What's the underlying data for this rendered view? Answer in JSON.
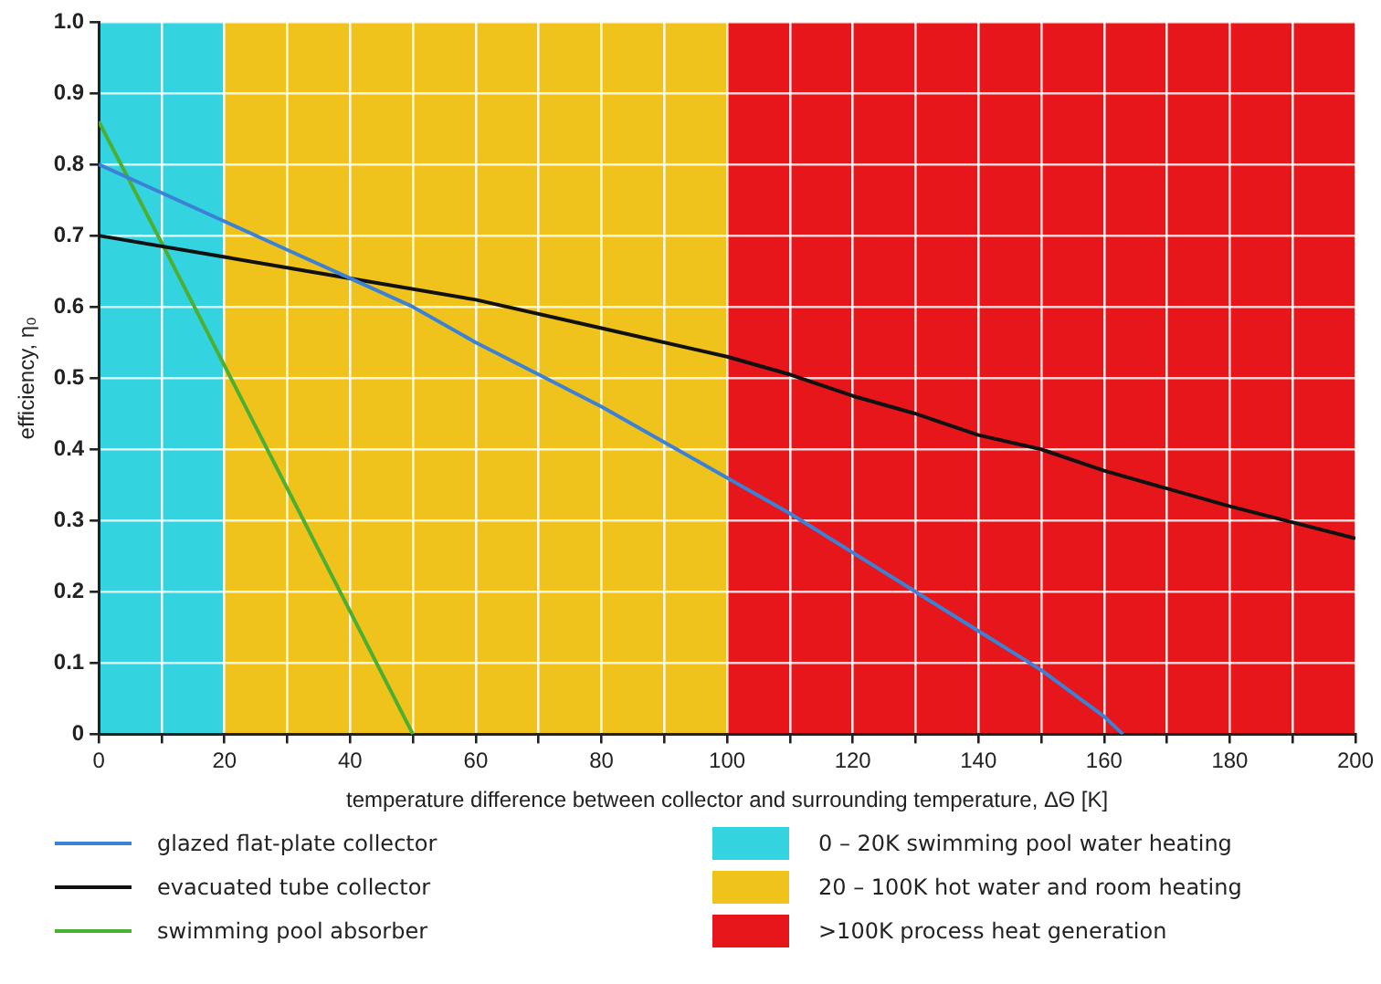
{
  "chart_data": {
    "type": "line",
    "xlabel": "temperature difference between collector and surrounding temperature, ΔΘ [K]",
    "ylabel": "efficiency, η₀",
    "xlim": [
      0,
      200
    ],
    "xticks": [
      0,
      {
        "value": 10,
        "label": null
      },
      20,
      {
        "value": 30,
        "label": null
      },
      40,
      {
        "value": 50,
        "label": null
      },
      60,
      {
        "value": 70,
        "label": null
      },
      80,
      {
        "value": 90,
        "label": null
      },
      100,
      {
        "value": 110,
        "label": null
      },
      120,
      {
        "value": 130,
        "label": null
      },
      140,
      {
        "value": 150,
        "label": null
      },
      160,
      {
        "value": 170,
        "label": null
      },
      180,
      {
        "value": 190,
        "label": null
      },
      200
    ],
    "ylim": [
      0,
      1
    ],
    "yticks": [
      0,
      0.1,
      0.2,
      0.3,
      0.4,
      0.5,
      0.6,
      0.7,
      0.8,
      0.9,
      {
        "value": 1,
        "label": "1.0"
      }
    ],
    "grid": true,
    "legend": "bottom",
    "marker": "none",
    "line_style": "solid",
    "series": [
      {
        "name": "glazed flat-plate collector",
        "color": "#3b82d6",
        "x": [
          0,
          10,
          20,
          30,
          40,
          50,
          60,
          70,
          80,
          90,
          100,
          110,
          120,
          130,
          140,
          150,
          160,
          163
        ],
        "values": [
          0.8,
          0.76,
          0.72,
          0.68,
          0.64,
          0.6,
          0.55,
          0.505,
          0.46,
          0.41,
          0.36,
          0.31,
          0.255,
          0.2,
          0.145,
          0.09,
          0.025,
          0
        ]
      },
      {
        "name": "evacuated tube collector",
        "color": "#111111",
        "x": [
          0,
          20,
          40,
          60,
          80,
          100,
          110,
          120,
          130,
          140,
          150,
          160,
          180,
          200
        ],
        "values": [
          0.7,
          0.67,
          0.64,
          0.61,
          0.57,
          0.53,
          0.505,
          0.475,
          0.45,
          0.42,
          0.4,
          0.37,
          0.32,
          0.275
        ]
      },
      {
        "name": "swimming pool absorber",
        "color": "#4caf32",
        "x": [
          0,
          10,
          50
        ],
        "values": [
          0.86,
          0.69,
          0
        ]
      }
    ],
    "bands": [
      {
        "axis": "x",
        "from": 0,
        "to": 20,
        "label": "0 – 20K swimming pool water heating",
        "color": "#33d3df"
      },
      {
        "axis": "x",
        "from": 20,
        "to": 100,
        "label": "20 – 100K hot water and room heating",
        "color": "#f0c31c"
      },
      {
        "axis": "x",
        "from": 100,
        "to": 200,
        "label": ">100K process heat generation",
        "color": "#e6161b"
      }
    ]
  }
}
